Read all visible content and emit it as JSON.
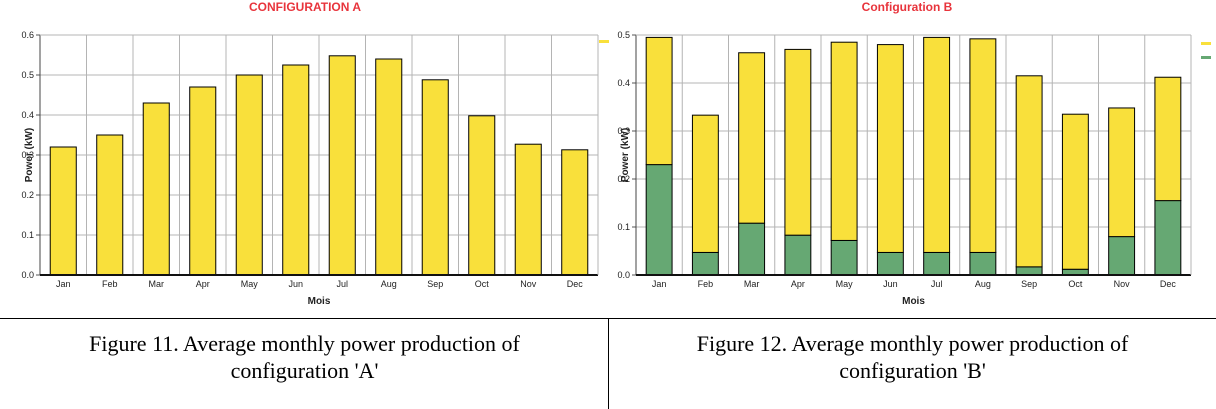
{
  "chart_data": [
    {
      "type": "bar",
      "title": "CONFIGURATION A",
      "xlabel": "Mois",
      "ylabel": "Power (kW)",
      "ylim": [
        0,
        0.6
      ],
      "yticks": [
        "0.0",
        "0.1",
        "0.2",
        "0.3",
        "0.4",
        "0.5",
        "0.6"
      ],
      "categories": [
        "Jan",
        "Feb",
        "Mar",
        "Apr",
        "May",
        "Jun",
        "Jul",
        "Aug",
        "Sep",
        "Oct",
        "Nov",
        "Dec"
      ],
      "stacked": false,
      "grid": true,
      "legend_position": "right",
      "series": [
        {
          "color": "#f9e03b",
          "values": [
            0.32,
            0.35,
            0.43,
            0.47,
            0.5,
            0.525,
            0.548,
            0.54,
            0.488,
            0.398,
            0.327,
            0.313
          ]
        }
      ],
      "caption_lines": [
        "Figure 11. Average monthly power production of",
        "configuration 'A'"
      ]
    },
    {
      "type": "bar",
      "title": "Configuration B",
      "xlabel": "Mois",
      "ylabel": "Power (kW)",
      "ylim": [
        0,
        0.5
      ],
      "yticks": [
        "0.0",
        "0.1",
        "0.2",
        "0.3",
        "0.4",
        "0.5"
      ],
      "categories": [
        "Jan",
        "Feb",
        "Mar",
        "Apr",
        "May",
        "Jun",
        "Jul",
        "Aug",
        "Sep",
        "Oct",
        "Nov",
        "Dec"
      ],
      "stacked": true,
      "grid": true,
      "legend_position": "right",
      "series": [
        {
          "color": "#66a873",
          "values": [
            0.23,
            0.047,
            0.108,
            0.083,
            0.072,
            0.047,
            0.047,
            0.047,
            0.017,
            0.012,
            0.08,
            0.155
          ]
        },
        {
          "color": "#f9e03b",
          "values": [
            0.265,
            0.286,
            0.355,
            0.387,
            0.413,
            0.433,
            0.448,
            0.445,
            0.398,
            0.323,
            0.268,
            0.257
          ]
        }
      ],
      "caption_lines": [
        "Figure 12. Average monthly power production of",
        "configuration 'B'"
      ]
    }
  ]
}
